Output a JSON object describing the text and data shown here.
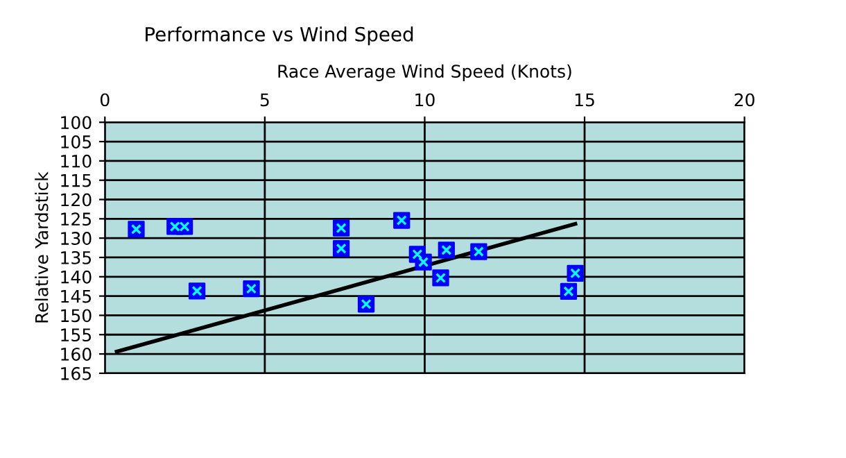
{
  "chart_data": {
    "type": "scatter",
    "title": "Performance vs Wind Speed",
    "xlabel": "Race Average Wind Speed (Knots)",
    "ylabel": "Relative Yardstick",
    "xlim": [
      0,
      20
    ],
    "xticks": [
      0,
      5,
      10,
      15,
      20
    ],
    "ylim": [
      165,
      100
    ],
    "yticks": [
      100,
      105,
      110,
      115,
      120,
      125,
      130,
      135,
      140,
      145,
      150,
      155,
      160,
      165
    ],
    "grid": true,
    "series": [
      {
        "marker": "square",
        "color": "#0000ff",
        "x": [
          0.98,
          2.19,
          2.49,
          2.88,
          4.58,
          7.39,
          7.39,
          8.17,
          9.28,
          9.77,
          9.96,
          10.68,
          10.5,
          11.69,
          14.71,
          14.5
        ],
        "values": [
          127.7,
          127.0,
          127.0,
          143.7,
          143.1,
          127.4,
          132.7,
          147.1,
          125.4,
          134.2,
          136.2,
          133.1,
          140.3,
          133.5,
          139.1,
          143.8
        ]
      },
      {
        "type": "line",
        "color": "#000000",
        "x": [
          0.37,
          14.71
        ],
        "values": [
          159.4,
          126.3
        ]
      }
    ]
  }
}
